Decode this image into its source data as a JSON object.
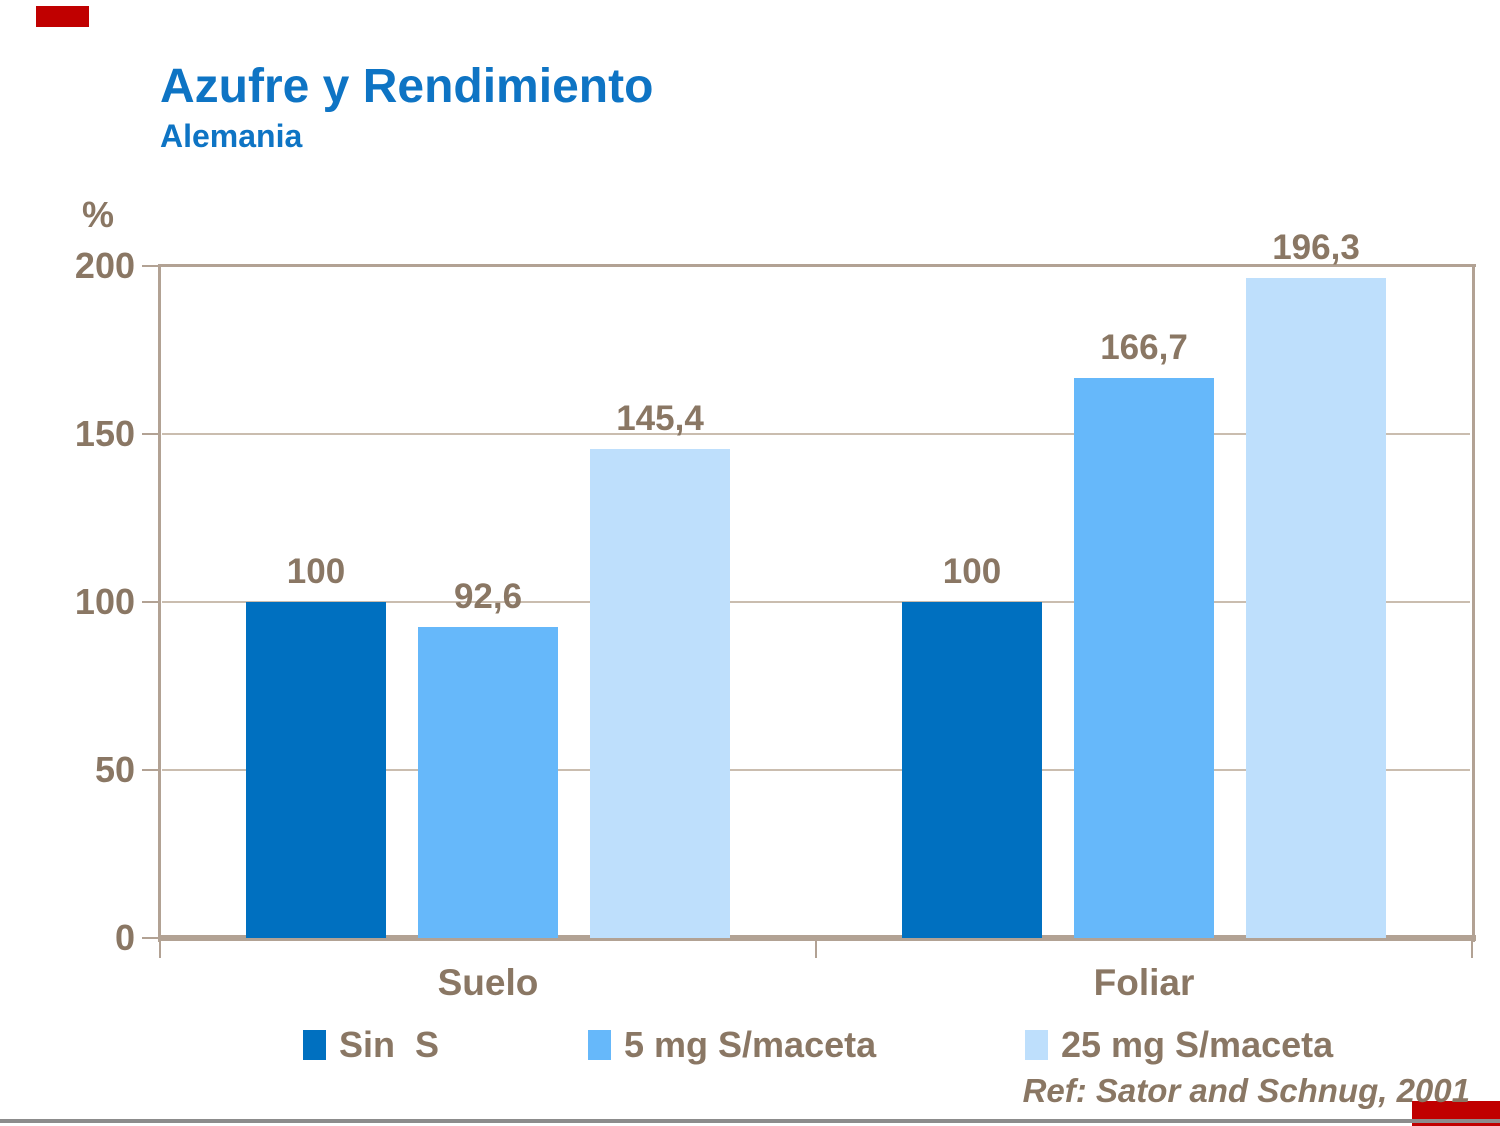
{
  "slide": {
    "title": "Azufre y Rendimiento",
    "subtitle": "Alemania",
    "reference": "Ref: Sator and Schnug, 2001"
  },
  "colors": {
    "title_blue": "#0e74c4",
    "text_brown": "#8a7764",
    "frame_tan": "#b2a294",
    "gridline_tan": "#cabdaf",
    "divider_gray": "#8c8c8c",
    "corner_red": "#c00000",
    "plot_background": "#ffffff"
  },
  "chart_data": {
    "type": "bar",
    "title": "Azufre y Rendimiento",
    "subtitle": "Alemania",
    "unit_label": "%",
    "xlabel": "",
    "ylabel": "%",
    "ylim": [
      0,
      200
    ],
    "yticks": [
      "0",
      "50",
      "100",
      "150",
      "200"
    ],
    "grid": true,
    "legend_position": "bottom",
    "categories": [
      "Suelo",
      "Foliar"
    ],
    "series": [
      {
        "name": "Sin  S",
        "color": "#0070c0",
        "values": [
          100,
          100
        ],
        "value_labels": [
          "100",
          "100"
        ]
      },
      {
        "name": "5 mg S/maceta",
        "color": "#66b8fa",
        "values": [
          92.6,
          166.7
        ],
        "value_labels": [
          "92,6",
          "166,7"
        ]
      },
      {
        "name": "25 mg S/maceta",
        "color": "#bedffc",
        "values": [
          145.4,
          196.3
        ],
        "value_labels": [
          "145,4",
          "196,3"
        ]
      }
    ]
  }
}
